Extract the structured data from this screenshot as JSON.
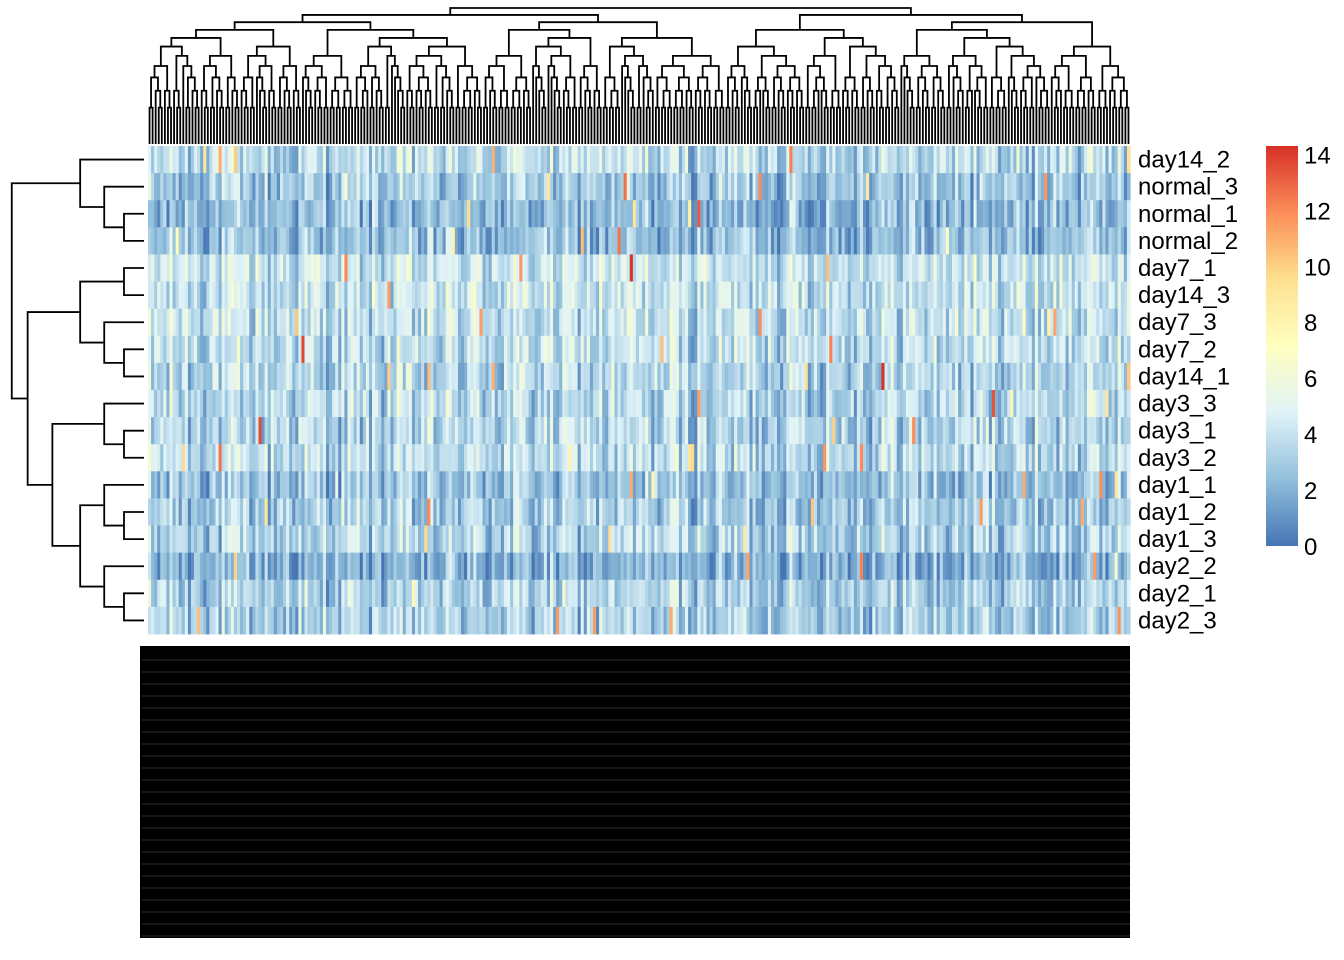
{
  "chart_data": {
    "type": "heatmap",
    "title": "",
    "xlabel": "",
    "ylabel": "",
    "rows": [
      "day14_2",
      "normal_3",
      "normal_1",
      "normal_2",
      "day7_1",
      "day14_3",
      "day7_3",
      "day7_2",
      "day14_1",
      "day3_3",
      "day3_1",
      "day3_2",
      "day1_1",
      "day1_2",
      "day1_3",
      "day2_2",
      "day2_1",
      "day2_3"
    ],
    "column_count": 320,
    "column_labels_legible": false,
    "value_range": [
      0,
      14.3
    ],
    "colorscale": [
      "#4575b4",
      "#91bfdb",
      "#e0f3f8",
      "#ffffbf",
      "#fee090",
      "#fc8d59",
      "#d73027"
    ],
    "colorbar": {
      "ticks": [
        0,
        2,
        4,
        6,
        8,
        10,
        12,
        14
      ],
      "placement": "right"
    },
    "row_dendrogram": true,
    "column_dendrogram": true,
    "cell_values": "estimated per-row expression levels; individual column labels illegible in source"
  }
}
